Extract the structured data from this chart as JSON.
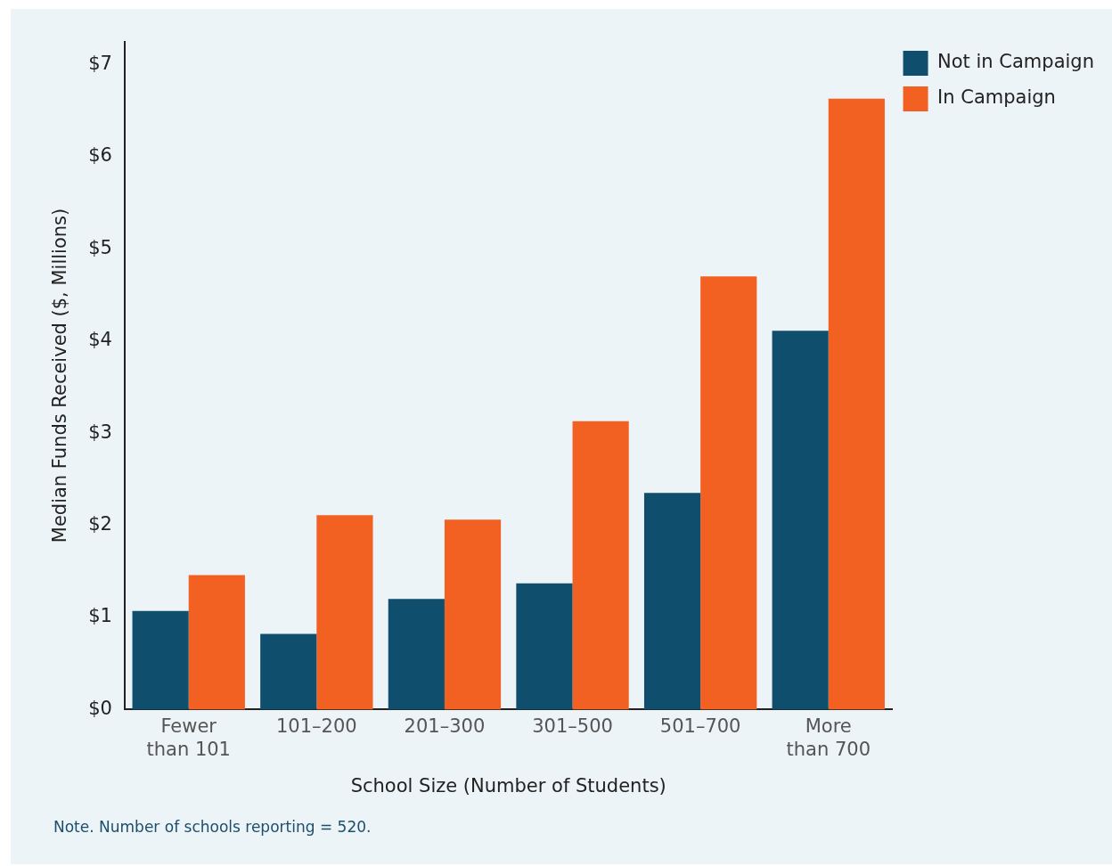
{
  "chart_data": {
    "type": "bar",
    "xlabel": "School Size (Number of Students)",
    "ylabel": "Median Funds Received ($, Millions)",
    "categories": [
      "Fewer than 101",
      "101–200",
      "201–300",
      "301–500",
      "501–700",
      "More than 700"
    ],
    "series": [
      {
        "name": "Not in Campaign",
        "color": "#0f4f6d",
        "values": [
          1.07,
          0.82,
          1.2,
          1.37,
          2.35,
          4.11
        ]
      },
      {
        "name": "In Campaign",
        "color": "#f26122",
        "values": [
          1.46,
          2.11,
          2.06,
          3.13,
          4.7,
          6.63
        ]
      }
    ],
    "ylim": [
      0,
      7.25
    ],
    "yticks": [
      {
        "value": 0,
        "label": "$0"
      },
      {
        "value": 1,
        "label": "$1"
      },
      {
        "value": 2,
        "label": "$2"
      },
      {
        "value": 3,
        "label": "$3"
      },
      {
        "value": 4,
        "label": "$4"
      },
      {
        "value": 5,
        "label": "$5"
      },
      {
        "value": 6,
        "label": "$6"
      },
      {
        "value": 7,
        "label": "$7"
      }
    ],
    "grid": false,
    "legend": "right",
    "annotations": [
      "Note. Number of schools reporting = 520."
    ]
  }
}
